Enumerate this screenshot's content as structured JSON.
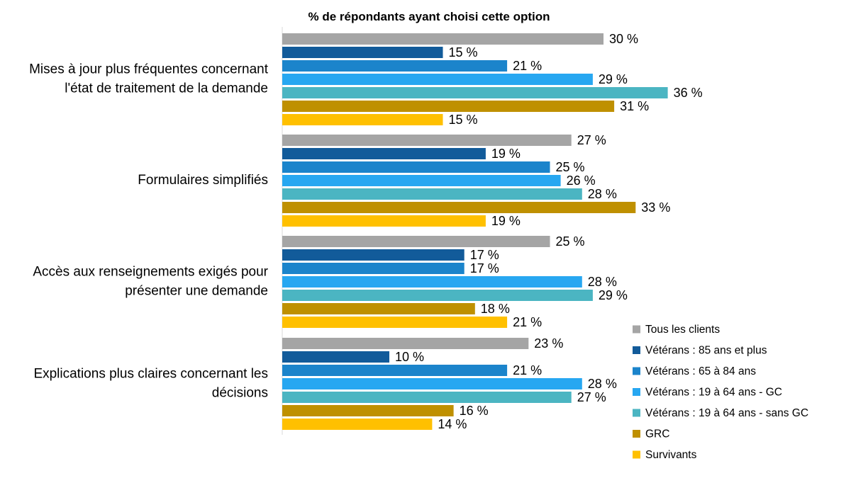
{
  "chart_data": {
    "type": "bar",
    "orientation": "horizontal",
    "title": "% de répondants ayant choisi cette option",
    "value_suffix": " %",
    "xlim": [
      0,
      36
    ],
    "legend_position": "bottom-right",
    "categories": [
      [
        "Mises à jour plus fréquentes concernant",
        "l'état de traitement de la demande"
      ],
      [
        "Formulaires simplifiés"
      ],
      [
        "Accès aux renseignements exigés pour",
        "présenter une demande"
      ],
      [
        "Explications plus claires concernant les",
        "décisions"
      ]
    ],
    "series": [
      {
        "name": "Tous les clients",
        "color": "#A5A5A5",
        "values": [
          30,
          27,
          25,
          23
        ]
      },
      {
        "name": "Vétérans : 85 ans et plus",
        "color": "#125B9A",
        "values": [
          15,
          19,
          17,
          10
        ]
      },
      {
        "name": "Vétérans : 65 à 84 ans",
        "color": "#1B84CB",
        "values": [
          21,
          25,
          17,
          21
        ]
      },
      {
        "name": "Vétérans : 19 à 64 ans - GC",
        "color": "#27A7F1",
        "values": [
          29,
          26,
          28,
          28
        ]
      },
      {
        "name": "Vétérans : 19 à 64 ans - sans GC",
        "color": "#4BB5C2",
        "values": [
          36,
          28,
          29,
          27
        ]
      },
      {
        "name": "GRC",
        "color": "#BF9000",
        "values": [
          31,
          33,
          18,
          16
        ]
      },
      {
        "name": "Survivants",
        "color": "#FFC000",
        "values": [
          15,
          19,
          21,
          14
        ]
      }
    ]
  }
}
